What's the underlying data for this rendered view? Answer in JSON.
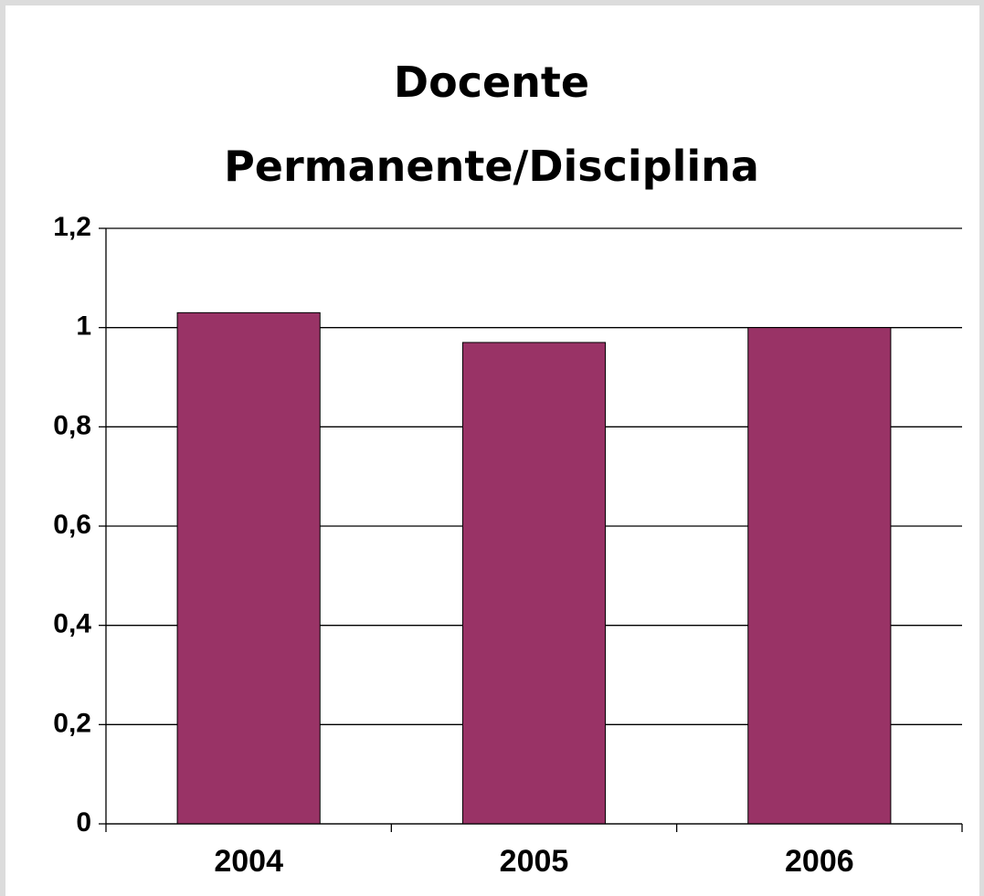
{
  "chart_data": {
    "type": "bar",
    "title": "Docente Permanente/Disciplina",
    "categories": [
      "2004",
      "2005",
      "2006"
    ],
    "values": [
      1.03,
      0.97,
      1.0
    ],
    "color": "#993366",
    "ylim": [
      0,
      1.2
    ],
    "yticks": [
      0,
      {
        "value": 0.2,
        "label": "0,2"
      },
      {
        "value": 0.4,
        "label": "0,4"
      },
      {
        "value": 0.6,
        "label": "0,6"
      },
      {
        "value": 0.8,
        "label": "0,8"
      },
      1,
      {
        "value": 1.2,
        "label": "1,2"
      }
    ],
    "grid": true
  }
}
